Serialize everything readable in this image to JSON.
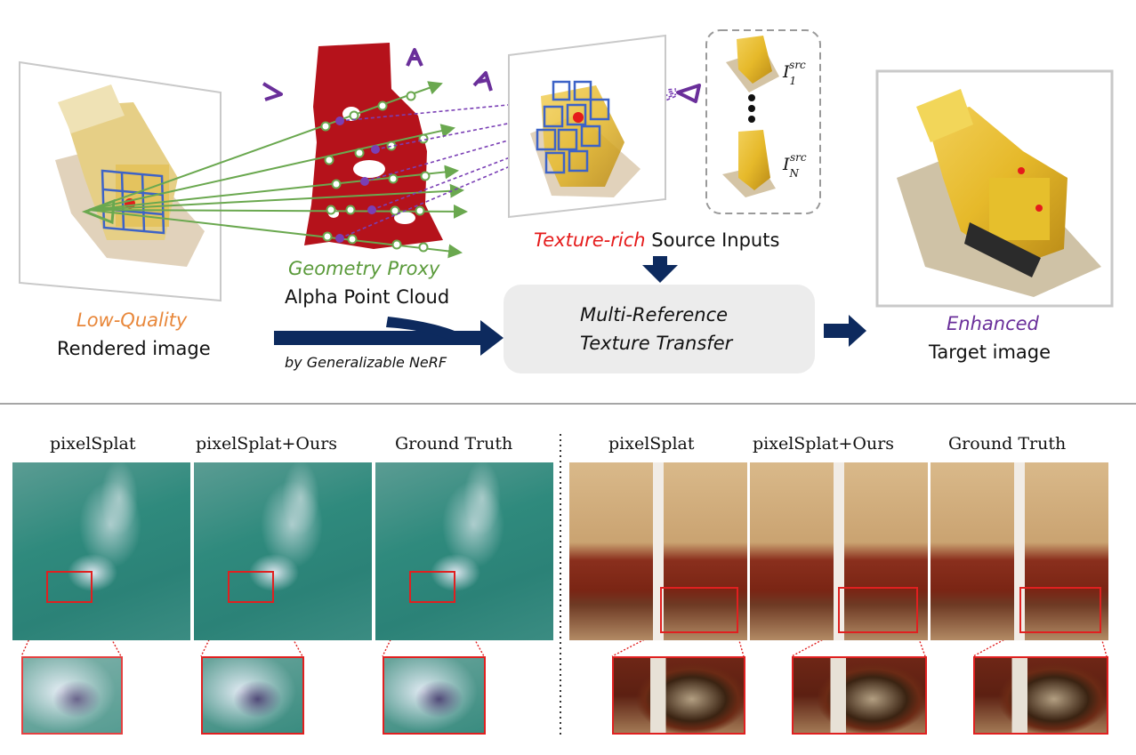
{
  "top": {
    "left_caption_1": "Low-Quality",
    "left_caption_2": "Rendered image",
    "proxy_caption_1": "Geometry Proxy",
    "proxy_caption_2": "Alpha Point Cloud",
    "nerf_caption": "by Generalizable NeRF",
    "source_caption_accent": "Texture-rich",
    "source_caption_rest": "Source Inputs",
    "source_label_1": "I",
    "source_sub_1": "1",
    "source_label_n": "I",
    "source_sub_n": "N",
    "source_sup": "src",
    "module_line_1": "Multi-Reference",
    "module_line_2": "Texture Transfer",
    "right_caption_1": "Enhanced",
    "right_caption_2": "Target image",
    "colors": {
      "low_quality": "#e8873a",
      "geometry_proxy": "#5a9a3a",
      "texture_rich": "#e51b1b",
      "enhanced": "#6a2f9a",
      "arrow": "#0d2a5e",
      "ray_green": "#6aa84f",
      "ray_purple": "#7a3fb5",
      "grid_blue": "#3d63c7"
    }
  },
  "bottom": {
    "left_group": {
      "titles": [
        "pixelSplat",
        "pixelSplat+Ours",
        "Ground Truth"
      ]
    },
    "right_group": {
      "titles": [
        "pixelSplat",
        "pixelSplat+Ours",
        "Ground Truth"
      ]
    }
  }
}
